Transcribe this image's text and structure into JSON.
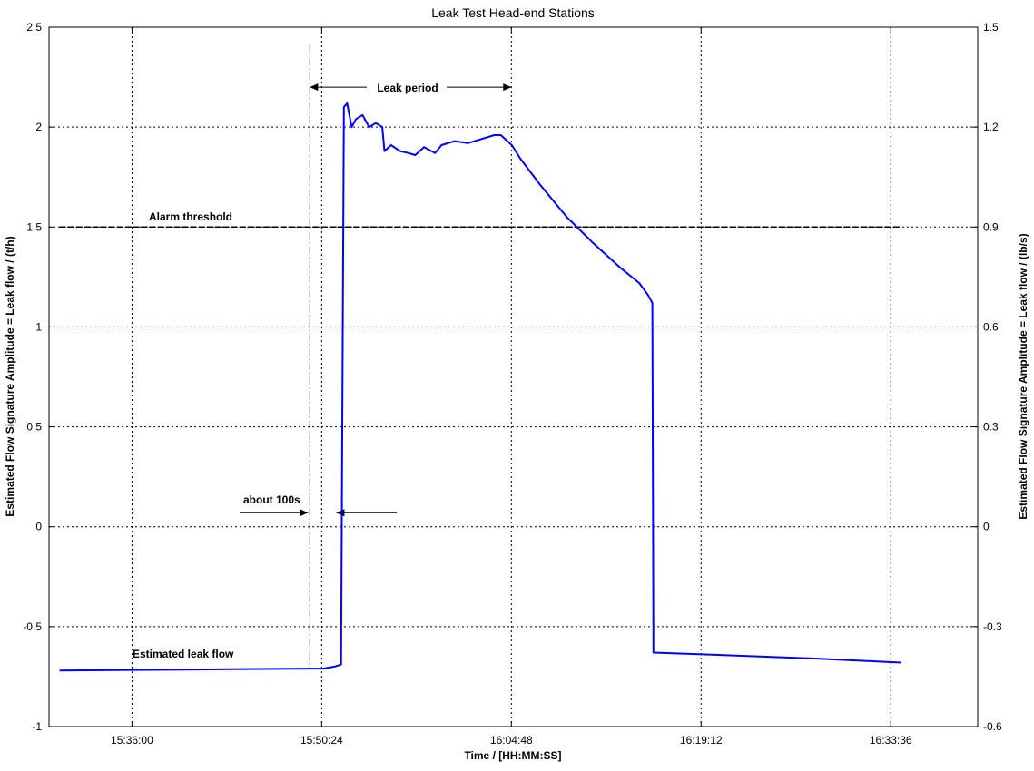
{
  "chart_data": {
    "type": "line",
    "title": "Leak Test Head-end Stations",
    "xlabel": "Time / [HH:MM:SS]",
    "ylabel": "Estimated Flow Signature Amplitude = Leak flow / (t/h)",
    "ylabel_right": "Estimated Flow Signature Amplitude = Leak flow / (lb/s)",
    "x_ticks": [
      "15:36:00",
      "15:50:24",
      "16:04:48",
      "16:19:12",
      "16:33:36"
    ],
    "y_ticks": [
      "-1",
      "-0.5",
      "0",
      "0.5",
      "1",
      "1.5",
      "2",
      "2.5"
    ],
    "y_right_ticks": [
      "-0.6",
      "-0.3",
      "0",
      "0.3",
      "0.6",
      "0.9",
      "1.2",
      "1.5"
    ],
    "xlim": [
      "15:29:42",
      "16:40:12"
    ],
    "ylim": [
      -1,
      2.5
    ],
    "ylim_right": [
      -0.6,
      1.5
    ],
    "grid": true,
    "series": [
      {
        "color": "#0000ff",
        "x": [
          "15:30:30",
          "15:40:00",
          "15:49:30",
          "15:50:30",
          "15:51:22",
          "15:51:52",
          "15:52:05",
          "15:52:20",
          "15:52:40",
          "15:53:00",
          "15:53:30",
          "15:54:00",
          "15:54:30",
          "15:55:00",
          "15:55:10",
          "15:55:40",
          "15:56:20",
          "15:57:00",
          "15:57:30",
          "15:58:10",
          "15:59:00",
          "15:59:30",
          "16:00:30",
          "16:01:30",
          "16:02:30",
          "16:03:30",
          "16:04:00",
          "16:04:50",
          "16:05:30",
          "16:07:00",
          "16:09:00",
          "16:11:00",
          "16:13:00",
          "16:14:30",
          "16:15:10",
          "16:15:30",
          "16:15:35",
          "16:20:00",
          "16:28:00",
          "16:34:24"
        ],
        "y": [
          -0.72,
          -0.715,
          -0.71,
          -0.71,
          -0.7,
          -0.69,
          2.1,
          2.12,
          2.0,
          2.04,
          2.06,
          2.0,
          2.02,
          2.0,
          1.88,
          1.91,
          1.88,
          1.87,
          1.86,
          1.9,
          1.87,
          1.91,
          1.93,
          1.92,
          1.94,
          1.96,
          1.96,
          1.91,
          1.84,
          1.71,
          1.55,
          1.42,
          1.3,
          1.22,
          1.16,
          1.12,
          -0.63,
          -0.64,
          -0.66,
          -0.68
        ]
      }
    ],
    "threshold": {
      "label": "Alarm threshold",
      "y": 1.5,
      "x_start": "15:30:30",
      "x_end": "16:34:24"
    },
    "annotations": {
      "leak_period": "Leak period",
      "about_100s": "about 100s",
      "estimated_leak_flow": "Estimated leak flow"
    },
    "markers": {
      "dashdot_x": "15:49:30",
      "leak_start_x": "15:51:22",
      "leak_end_x": "16:04:48"
    }
  }
}
